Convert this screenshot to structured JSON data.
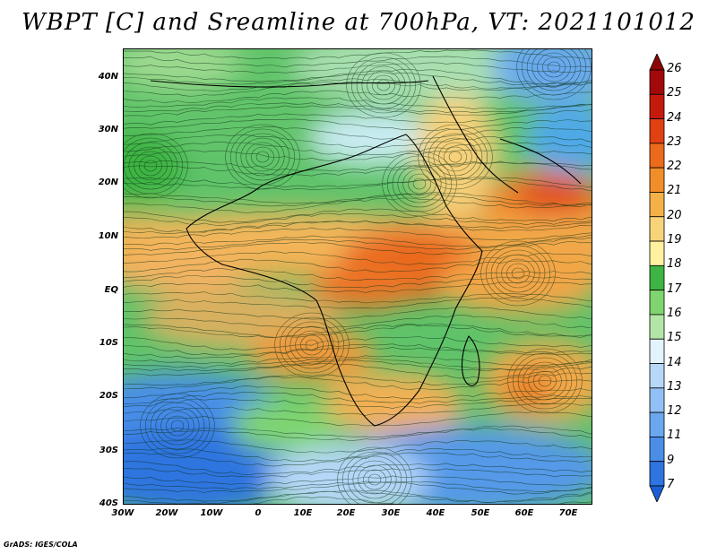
{
  "title": "WBPT [C] and Sreamline at 700hPa, VT: 2021101012",
  "footer": "GrADS: IGES/COLA",
  "map": {
    "lat_ticks": [
      "40N",
      "30N",
      "20N",
      "10N",
      "EQ",
      "10S",
      "20S",
      "30S",
      "40S"
    ],
    "lon_ticks": [
      "30W",
      "20W",
      "10W",
      "0",
      "10E",
      "20E",
      "30E",
      "40E",
      "50E",
      "60E",
      "70E"
    ]
  },
  "colorbar": {
    "levels": [
      "7",
      "9",
      "11",
      "12",
      "13",
      "14",
      "15",
      "16",
      "17",
      "18",
      "19",
      "20",
      "21",
      "22",
      "23",
      "24",
      "25",
      "26"
    ],
    "colors": [
      "#1a5fd6",
      "#2f74e0",
      "#4a8ee8",
      "#6ba7ef",
      "#90c0f4",
      "#b6d7f8",
      "#e2f3fb",
      "#b3e6a6",
      "#7fd46f",
      "#3db443",
      "#fff1a0",
      "#f8d37a",
      "#f4b148",
      "#f18e2a",
      "#ec6a1b",
      "#e04012",
      "#c41a0c",
      "#a10a08",
      "#8c0606"
    ]
  }
}
